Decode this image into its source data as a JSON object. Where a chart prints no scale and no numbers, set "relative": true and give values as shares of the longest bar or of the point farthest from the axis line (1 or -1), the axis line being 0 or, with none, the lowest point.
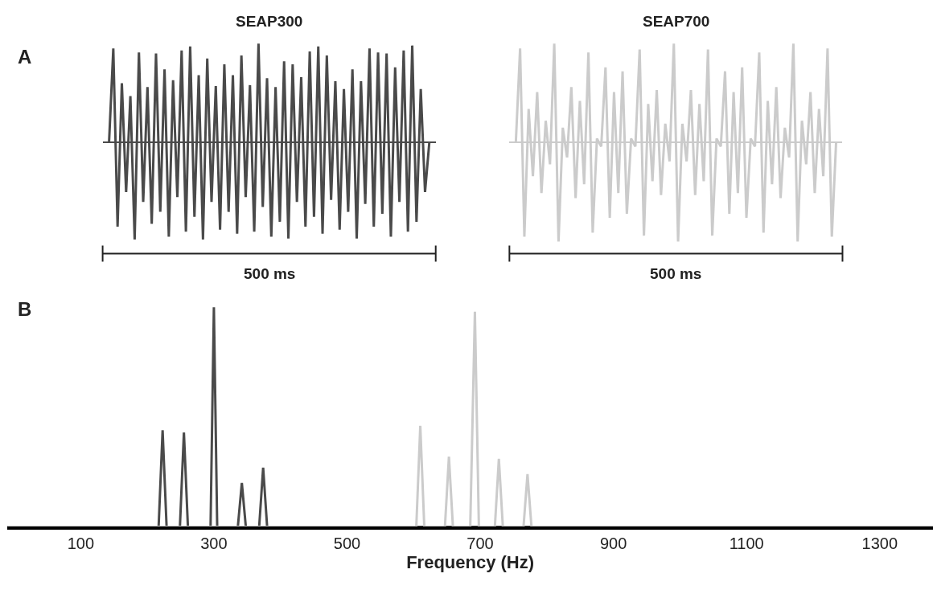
{
  "chart_data": [
    {
      "type": "line",
      "title": "SEAP300",
      "relative": true,
      "annotations": [
        "A",
        "500 ms"
      ],
      "categories": [
        null,
        null,
        null,
        null,
        null,
        null,
        null,
        null,
        null,
        null,
        null,
        null,
        null,
        null,
        null,
        null,
        null,
        null,
        null,
        null,
        null,
        null,
        null,
        null,
        null,
        null,
        null,
        null,
        null,
        null,
        null,
        null,
        null,
        null,
        null,
        null,
        null,
        null,
        null,
        null,
        null,
        null,
        null,
        null,
        null,
        null,
        null,
        null,
        null,
        null,
        null,
        null,
        null,
        null,
        null,
        null,
        null,
        null,
        null,
        null,
        null,
        null,
        null,
        null,
        null,
        null,
        null,
        null,
        null,
        null,
        null,
        null,
        null,
        null,
        null,
        null
      ],
      "series": [
        {
          "color": "#4a4a4a",
          "values": [
            0,
            0.95,
            -0.85,
            0.6,
            -0.5,
            0.47,
            -0.98,
            0.91,
            -0.6,
            0.56,
            -0.82,
            0.9,
            -0.7,
            0.74,
            -0.95,
            0.63,
            -0.55,
            0.93,
            -0.9,
            0.97,
            -0.75,
            0.68,
            -0.98,
            0.85,
            -0.6,
            0.57,
            -0.88,
            0.79,
            -0.7,
            0.68,
            -0.92,
            0.88,
            -0.55,
            0.58,
            -0.9,
            1.0,
            -0.65,
            0.65,
            -0.95,
            0.56,
            -0.8,
            0.82,
            -0.97,
            0.79,
            -0.6,
            0.66,
            -0.85,
            0.92,
            -0.75,
            0.97,
            -0.92,
            0.88,
            -0.58,
            0.62,
            -0.88,
            0.54,
            -0.7,
            0.74,
            -0.97,
            0.62,
            -0.62,
            0.95,
            -0.85,
            0.91,
            -0.72,
            0.9,
            -0.95,
            0.76,
            -0.6,
            0.93,
            -0.9,
            0.98,
            -0.8,
            0.54,
            -0.5,
            0
          ]
        }
      ]
    },
    {
      "type": "line",
      "title": "SEAP700",
      "relative": true,
      "annotations": [
        "500 ms"
      ],
      "categories": [
        null,
        null,
        null,
        null,
        null,
        null,
        null,
        null,
        null,
        null,
        null,
        null,
        null,
        null,
        null,
        null,
        null,
        null,
        null,
        null,
        null,
        null,
        null,
        null,
        null,
        null,
        null,
        null,
        null,
        null,
        null,
        null,
        null,
        null,
        null,
        null,
        null,
        null,
        null,
        null,
        null,
        null,
        null,
        null,
        null,
        null,
        null,
        null,
        null,
        null,
        null,
        null,
        null,
        null,
        null,
        null,
        null,
        null,
        null,
        null,
        null,
        null,
        null,
        null,
        null,
        null,
        null,
        null,
        null,
        null,
        null,
        null,
        null,
        null,
        null,
        null
      ],
      "series": [
        {
          "color": "#cbcbcb",
          "values": [
            0,
            0.95,
            -0.95,
            0.34,
            -0.34,
            0.51,
            -0.51,
            0.22,
            -0.22,
            1.0,
            -1.0,
            0.15,
            -0.15,
            0.56,
            -0.56,
            0.42,
            -0.42,
            0.91,
            -0.91,
            0.04,
            -0.04,
            0.76,
            -0.76,
            0.51,
            -0.51,
            0.72,
            -0.72,
            0.04,
            -0.04,
            0.94,
            -0.94,
            0.39,
            -0.39,
            0.53,
            -0.53,
            0.19,
            -0.19,
            1.0,
            -1.0,
            0.19,
            -0.19,
            0.53,
            -0.53,
            0.39,
            -0.39,
            0.94,
            -0.94,
            0.04,
            -0.04,
            0.72,
            -0.72,
            0.51,
            -0.51,
            0.76,
            -0.76,
            0.04,
            -0.04,
            0.91,
            -0.91,
            0.42,
            -0.42,
            0.56,
            -0.56,
            0.15,
            -0.15,
            1.0,
            -1.0,
            0.22,
            -0.22,
            0.51,
            -0.51,
            0.34,
            -0.34,
            0.95,
            -0.95,
            0
          ]
        }
      ]
    },
    {
      "type": "line",
      "xlabel": "Frequency (Hz)",
      "relative": true,
      "annotations": [
        "B"
      ],
      "xlim": [
        -10,
        1380
      ],
      "xticks": [
        100,
        300,
        500,
        700,
        900,
        1100,
        1300
      ],
      "series": [
        {
          "color": "#4a4a4a",
          "x": [
            -10,
            217,
            223,
            229,
            249,
            255,
            261,
            295,
            300,
            305,
            336,
            342,
            348,
            368,
            374,
            380,
            1380
          ],
          "values": [
            0,
            0,
            0.44,
            0,
            0,
            0.43,
            0,
            0,
            1.0,
            0,
            0,
            0.2,
            0,
            0,
            0.27,
            0,
            0
          ]
        },
        {
          "color": "#cbcbcb",
          "x": [
            -10,
            604,
            610,
            616,
            647,
            653,
            659,
            685,
            692,
            698,
            722,
            728,
            734,
            765,
            771,
            777,
            1380
          ],
          "values": [
            0,
            0,
            0.46,
            0,
            0,
            0.32,
            0,
            0,
            0.98,
            0,
            0,
            0.31,
            0,
            0,
            0.24,
            0,
            0
          ]
        }
      ]
    }
  ]
}
